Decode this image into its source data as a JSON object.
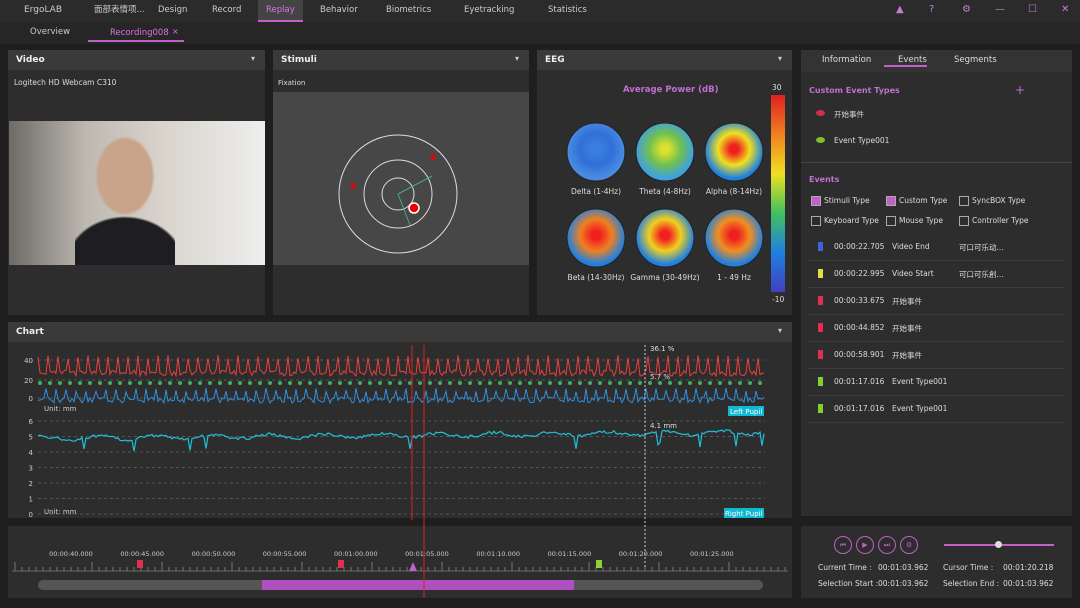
{
  "menu": {
    "app": "ErgoLAB",
    "tabs": [
      "面部表情项...",
      "Design",
      "Record",
      "Replay",
      "Behavior",
      "Biometrics",
      "Eyetracking",
      "Statistics"
    ],
    "active": "Replay"
  },
  "doc_tabs": [
    "Overview",
    "Recording008"
  ],
  "video": {
    "title": "Video",
    "camera": "Logitech HD Webcam C310"
  },
  "stimuli": {
    "title": "Stimuli",
    "mode": "Fixation"
  },
  "eeg": {
    "title": "EEG",
    "heading": "Average Power (dB)",
    "maps": [
      "Delta (1-4Hz)",
      "Theta (4-8Hz)",
      "Alpha (8-14Hz)",
      "Beta (14-30Hz)",
      "Gamma (30-49Hz)",
      "1 - 49 Hz"
    ],
    "scale_max": 30,
    "scale_min": -10
  },
  "side": {
    "tabs": [
      "Information",
      "Events",
      "Segments"
    ],
    "custom_title": "Custom Event Types",
    "custom_types": [
      "开始事件",
      "Event Type001"
    ],
    "events_title": "Events",
    "filters": [
      "Stimuli Type",
      "Custom Type",
      "SyncBOX Type",
      "Keyboard Type",
      "Mouse Type",
      "Controller Type"
    ],
    "events": [
      [
        "00:00:22.705",
        "Video End",
        "可口可乐动..."
      ],
      [
        "00:00:22.995",
        "Video Start",
        "可口可乐創..."
      ],
      [
        "00:00:33.675",
        "开始事件",
        null
      ],
      [
        "00:00:44.852",
        "开始事件",
        null
      ],
      [
        "00:00:58.901",
        "开始事件",
        null
      ],
      [
        "00:01:17.016",
        "Event Type001",
        null
      ],
      [
        "00:01:17.016",
        "Event Type001",
        null
      ]
    ]
  },
  "chart": {
    "title": "Chart",
    "signal_ticks": [
      40,
      20,
      0
    ],
    "pupil_ticks": [
      6,
      5,
      4,
      3,
      2,
      1,
      0
    ],
    "unit": "Unit: mm",
    "left_label": "Left Pupil",
    "right_label": "Right Pupil",
    "notes": [
      "36.1 %",
      "5.7 %",
      "4.1 mm"
    ]
  },
  "timeline": [
    "00:00:40.000",
    "00:00:45.000",
    "00:00:50.000",
    "00:00:55.000",
    "00:01:00.000",
    "00:01:05.000",
    "00:01:10.000",
    "00:01:15.000",
    "00:01:20.000",
    "00:01:25.000"
  ],
  "times": [
    [
      "Current Time :",
      "00:01:03.962"
    ],
    [
      "Cursor Time :",
      "00:01:20.218"
    ],
    [
      "Selection Start :",
      "00:01:03.962"
    ],
    [
      "Selection End :",
      "00:01:03.962"
    ]
  ]
}
